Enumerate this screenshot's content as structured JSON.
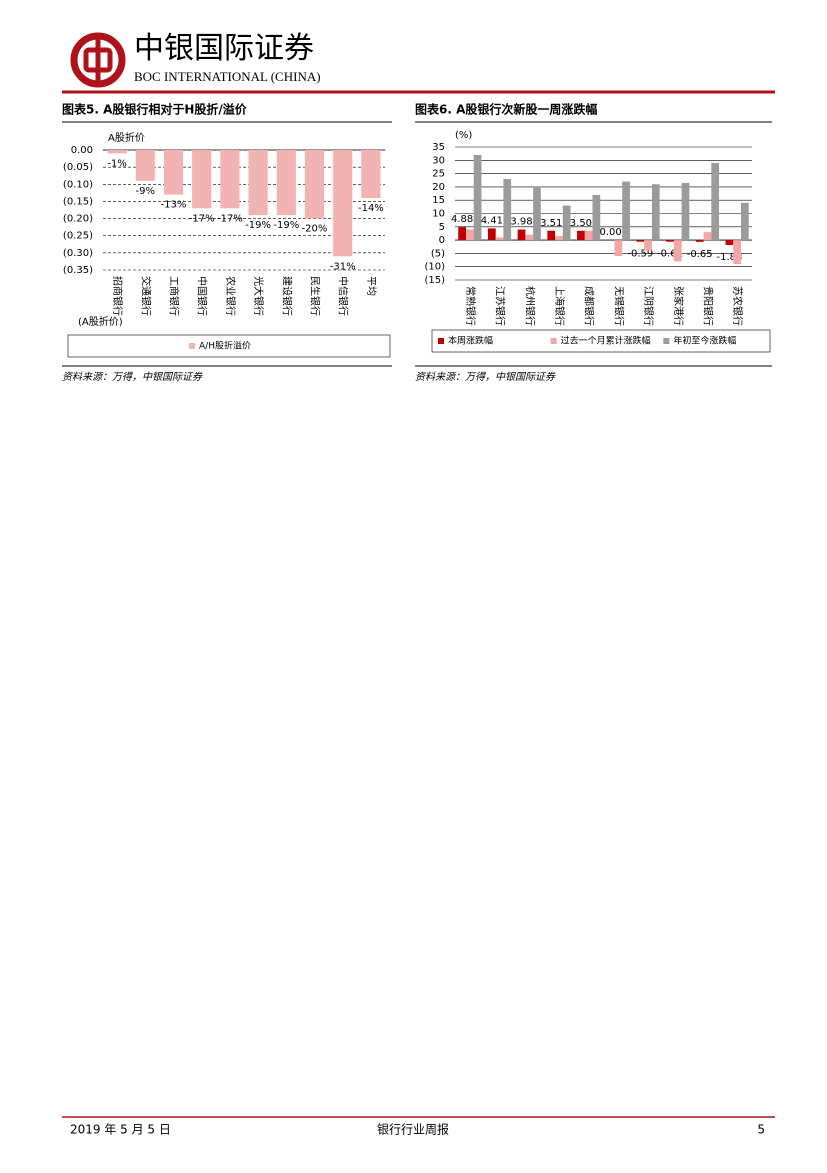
{
  "header": {
    "name": "中银国际证券",
    "name_en": "BOC INTERNATIONAL (CHINA)"
  },
  "chart_data": [
    {
      "type": "bar",
      "title": "图表5. A股银行相对于H股折/溢价",
      "y_label": "A股折价",
      "x_label": "(A股折价)",
      "categories": [
        "招商银行",
        "交通银行",
        "工商银行",
        "中国银行",
        "农业银行",
        "光大银行",
        "建设银行",
        "民生银行",
        "中信银行",
        "平均"
      ],
      "series": [
        {
          "name": "A/H股折溢价",
          "color": "#f2b3b3",
          "values": [
            -0.01,
            -0.09,
            -0.13,
            -0.17,
            -0.17,
            -0.19,
            -0.19,
            -0.2,
            -0.31,
            -0.14
          ],
          "value_labels": [
            "-1%",
            "-9%",
            "-13%",
            "-17%",
            "-17%",
            "-19%",
            "-19%",
            "-20%",
            "-31%",
            "-14%"
          ]
        }
      ],
      "ylim": [
        -0.35,
        0
      ],
      "yticks": [
        {
          "value": 0,
          "label": "0.00"
        },
        {
          "value": -0.05,
          "label": "(0.05)"
        },
        {
          "value": -0.1,
          "label": "(0.10)"
        },
        {
          "value": -0.15,
          "label": "(0.15)"
        },
        {
          "value": -0.2,
          "label": "(0.20)"
        },
        {
          "value": -0.25,
          "label": "(0.25)"
        },
        {
          "value": -0.3,
          "label": "(0.30)"
        },
        {
          "value": -0.35,
          "label": "(0.35)"
        }
      ],
      "grid": true,
      "source": "资料来源：万得，中银国际证券"
    },
    {
      "type": "bar",
      "title": "图表6. A股银行次新股一周涨跌幅",
      "y_label": "(%)",
      "categories": [
        "常熟银行",
        "江苏银行",
        "杭州银行",
        "上海银行",
        "成都银行",
        "无锡银行",
        "江阴银行",
        "张家港行",
        "贵阳银行",
        "苏农银行"
      ],
      "series": [
        {
          "name": "本周涨跌幅",
          "color": "#c00000",
          "values": [
            4.88,
            4.41,
            3.98,
            3.51,
            3.5,
            0,
            -0.59,
            -0.61,
            -0.65,
            -1.83
          ],
          "value_labels": [
            "4.88",
            "4.41",
            "3.98",
            "3.51",
            "3.50",
            "0.00",
            "-0.59",
            "-0.61",
            "-0.65",
            "-1.83"
          ]
        },
        {
          "name": "过去一个月累计涨跌幅",
          "color": "#f4a6a6",
          "values": [
            4,
            1,
            2,
            1.5,
            3.5,
            -6,
            -4,
            -8,
            3,
            -9
          ]
        },
        {
          "name": "年初至今涨跌幅",
          "color": "#9b9b9b",
          "values": [
            32,
            23,
            20,
            13,
            17,
            22,
            21,
            21.5,
            29,
            14
          ]
        }
      ],
      "ylim": [
        -15,
        35
      ],
      "yticks": [
        35,
        30,
        25,
        20,
        15,
        10,
        5,
        0,
        {
          "value": -5,
          "label": "(5)"
        },
        {
          "value": -10,
          "label": "(10)"
        },
        {
          "value": -15,
          "label": "(15)"
        }
      ],
      "grid": true,
      "source": "资料来源：万得，中银国际证券"
    }
  ],
  "footer": {
    "date": "2019 年 5 月 5 日",
    "report": "银行行业周报",
    "page": "5"
  }
}
